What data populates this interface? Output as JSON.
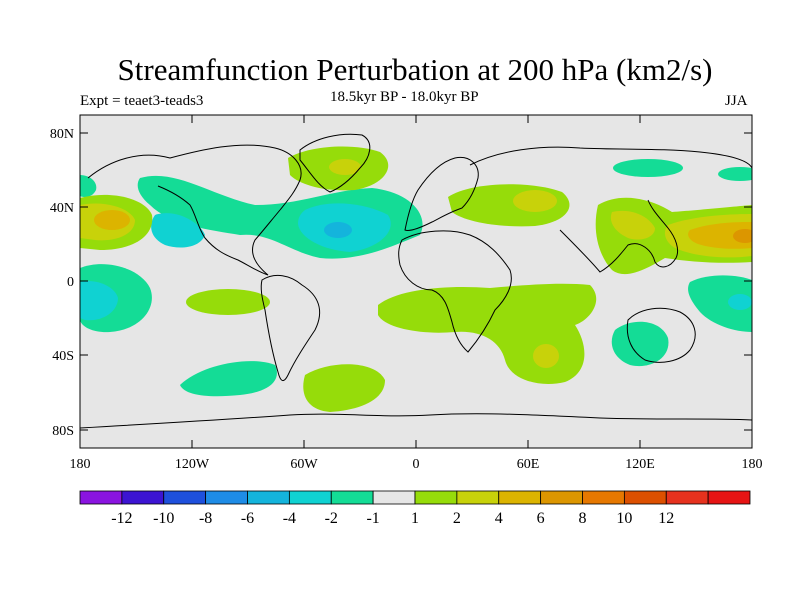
{
  "header": {
    "title": "Streamfunction Perturbation at 200 hPa (km2/s)",
    "left_label": "Expt = teaet3-teads3",
    "center_label": "18.5kyr BP - 18.0kyr BP",
    "right_label": "JJA"
  },
  "axes": {
    "lat_labels": [
      "80N",
      "40N",
      "0",
      "40S",
      "80S"
    ],
    "lon_labels": [
      "180",
      "120W",
      "60W",
      "0",
      "60E",
      "120E",
      "180"
    ]
  },
  "colorbar": {
    "colors": [
      "#8a14e0",
      "#3c14d2",
      "#1e50dc",
      "#1e8ce6",
      "#14b4dc",
      "#10d2d2",
      "#14dc96",
      "#e6e6e6",
      "#96dc0a",
      "#c8d20a",
      "#dcb400",
      "#dc9600",
      "#e67800",
      "#dc5000",
      "#e6321e",
      "#e61414"
    ],
    "labels": [
      "-12",
      "-10",
      "-8",
      "-6",
      "-4",
      "-2",
      "-1",
      "1",
      "2",
      "4",
      "6",
      "8",
      "10",
      "12"
    ]
  },
  "colors": {
    "background": "#e6e6e6",
    "neg_light": "#14dc96",
    "neg_mid": "#10d2d2",
    "neg_strong": "#14b4dc",
    "pos_light": "#96dc0a",
    "pos_mid": "#c8d20a",
    "pos_strong": "#dcb400",
    "pos_stronger": "#dc9600"
  }
}
